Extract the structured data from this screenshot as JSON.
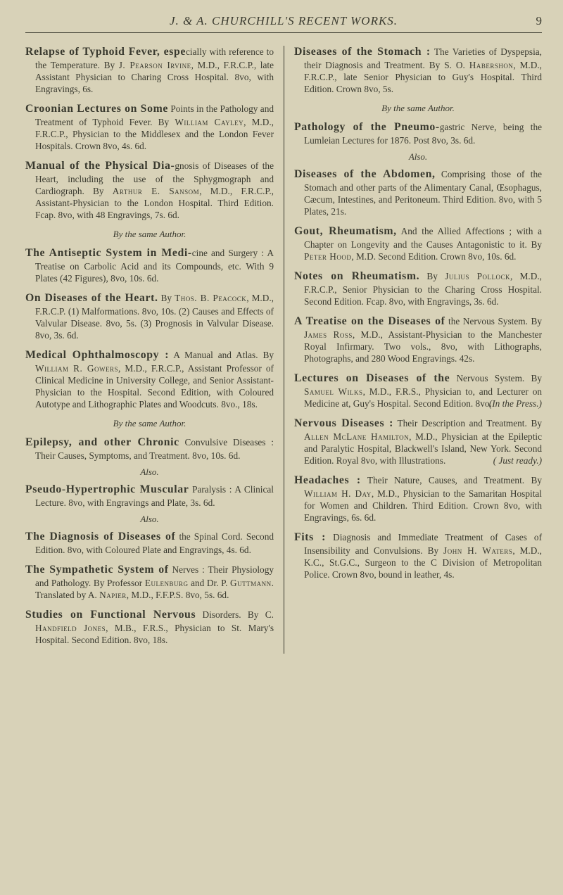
{
  "page": {
    "running_head": "J. & A. CHURCHILL'S RECENT WORKS.",
    "number": "9"
  },
  "bylines": {
    "same_author": "By the same Author.",
    "also": "Also.",
    "in_press": "(In the Press.)",
    "just_ready": "( Just ready.)"
  },
  "left": [
    {
      "html": "<span class='lead'>Relapse of Typhoid Fever, espe</span>cially with reference to the Temperature. By <span class='sc'>J. Pearson Irvine</span>, M.D., F.R.C.P., late Assistant Physician to Charing Cross Hospital. 8vo, with Engravings, 6s."
    },
    {
      "html": "<span class='lead'>Croonian Lectures on Some</span> Points in the Pathology and Treatment of Typhoid Fever. By <span class='sc'>William Cayley</span>, M.D., F.R.C.P., Physician to the Middlesex and the London Fever Hospitals. Crown 8vo, 4s. 6d."
    },
    {
      "html": "<span class='lead'>Manual of the Physical Dia-</span>gnosis of Diseases of the Heart, including the use of the Sphygmograph and Cardiograph. By <span class='sc'>Arthur E. Sansom</span>, M.D., F.R.C.P., Assistant-Physician to the London Hospital. Third Edition. Fcap. 8vo, with 48 Engravings, 7s. 6d."
    },
    {
      "byline": "same_author"
    },
    {
      "html": "<span class='lead'>The Antiseptic System in Medi-</span>cine and Surgery : A Treatise on Carbolic Acid and its Compounds, etc. With 9 Plates (42 Figures), 8vo, 10s. 6d."
    },
    {
      "html": "<span class='lead'>On Diseases of the Heart.</span> By <span class='sc'>Thos. B. Peacock</span>, M.D., F.R.C.P. (1) Malformations. 8vo, 10s. (2) Causes and Effects of Valvular Disease. 8vo, 5s. (3) Prognosis in Valvular Disease. 8vo, 3s. 6d."
    },
    {
      "html": "<span class='lead'>Medical Ophthalmoscopy :</span> A Manual and Atlas. By <span class='sc'>William R. Gowers</span>, M.D., F.R.C.P., Assistant Professor of Clinical Medicine in University College, and Senior Assistant-Physician to the Hospital. Second Edition, with Coloured Autotype and Lithographic Plates and Woodcuts. 8vo., 18s."
    },
    {
      "byline": "same_author"
    },
    {
      "html": "<span class='lead'>Epilepsy, and other Chronic</span> Convulsive Diseases : Their Causes, Symptoms, and Treatment. 8vo, 10s. 6d."
    },
    {
      "also": true
    },
    {
      "html": "<span class='lead'>Pseudo-Hypertrophic Muscular</span> Paralysis : A Clinical Lecture. 8vo, with Engravings and Plate, 3s. 6d."
    },
    {
      "also": true
    },
    {
      "html": "<span class='lead'>The Diagnosis of Diseases of</span> the Spinal Cord. Second Edition. 8vo, with Coloured Plate and Engravings, 4s. 6d."
    },
    {
      "html": "<span class='lead'>The Sympathetic System of</span> Nerves : Their Physiology and Pathology. By Professor <span class='sc'>Eulenburg</span> and Dr. P. <span class='sc'>Guttmann</span>. Translated by A. <span class='sc'>Napier</span>, M.D., F.F.P.S. 8vo, 5s. 6d."
    },
    {
      "html": "<span class='lead'>Studies on Functional Nervous</span> Disorders. By C. <span class='sc'>Handfield Jones</span>, M.B., F.R.S., Physician to St. Mary's Hospital. Second Edition. 8vo, 18s."
    }
  ],
  "right": [
    {
      "html": "<span class='lead'>Diseases of the Stomach :</span> The Varieties of Dyspepsia, their Diagnosis and Treatment. By S. O. <span class='sc'>Habershon</span>, M.D., F.R.C.P., late Senior Physician to Guy's Hospital. Third Edition. Crown 8vo, 5s."
    },
    {
      "byline": "same_author"
    },
    {
      "html": "<span class='lead'>Pathology of the Pneumo-</span>gastric Nerve, being the Lumleian Lectures for 1876. Post 8vo, 3s. 6d."
    },
    {
      "also": true
    },
    {
      "html": "<span class='lead'>Diseases of the Abdomen,</span> Comprising those of the Stomach and other parts of the Alimentary Canal, Œsophagus, Cæcum, Intestines, and Peritoneum. Third Edition. 8vo, with 5 Plates, 21s."
    },
    {
      "html": "<span class='lead'>Gout, Rheumatism,</span> And the Allied Affections ; with a Chapter on Longevity and the Causes Antagonistic to it. By <span class='sc'>Peter Hood</span>, M.D. Second Edition. Crown 8vo, 10s. 6d."
    },
    {
      "html": "<span class='lead'>Notes on Rheumatism.</span> By <span class='sc'>Julius Pollock</span>, M.D., F.R.C.P., Senior Physician to the Charing Cross Hospital. Second Edition. Fcap. 8vo, with Engravings, 3s. 6d."
    },
    {
      "html": "<span class='lead'>A Treatise on the Diseases of</span> the Nervous System. By <span class='sc'>James Ross</span>, M.D., Assistant-Physician to the Manchester Royal Infirmary. Two vols., 8vo, with Lithographs, Photographs, and 280 Wood Engravings. 42s."
    },
    {
      "html": "<span class='lead'>Lectures on Diseases of the</span> Nervous System. By <span class='sc'>Samuel Wilks</span>, M.D., F.R.S., Physician to, and Lecturer on Medicine at, Guy's Hospital. Second Edition. 8vo.",
      "trail": "in_press"
    },
    {
      "html": "<span class='lead'>Nervous Diseases :</span> Their Description and Treatment. By <span class='sc'>Allen McLane Hamilton</span>, M.D., Physician at the Epileptic and Paralytic Hospital, Blackwell's Island, New York. Second Edition. Royal 8vo, with Illustrations.",
      "trail": "just_ready"
    },
    {
      "html": "<span class='lead'>Headaches :</span> Their Nature, Causes, and Treatment. By <span class='sc'>William H. Day</span>, M.D., Physician to the Samaritan Hospital for Women and Children. Third Edition. Crown 8vo, with Engravings, 6s. 6d."
    },
    {
      "html": "<span class='lead'>Fits :</span> Diagnosis and Immediate Treatment of Cases of Insensibility and Convulsions. By <span class='sc'>John H. Waters</span>, M.D., K.C., St.G.C., Surgeon to the C Division of Metropolitan Police. Crown 8vo, bound in leather, 4s."
    }
  ]
}
